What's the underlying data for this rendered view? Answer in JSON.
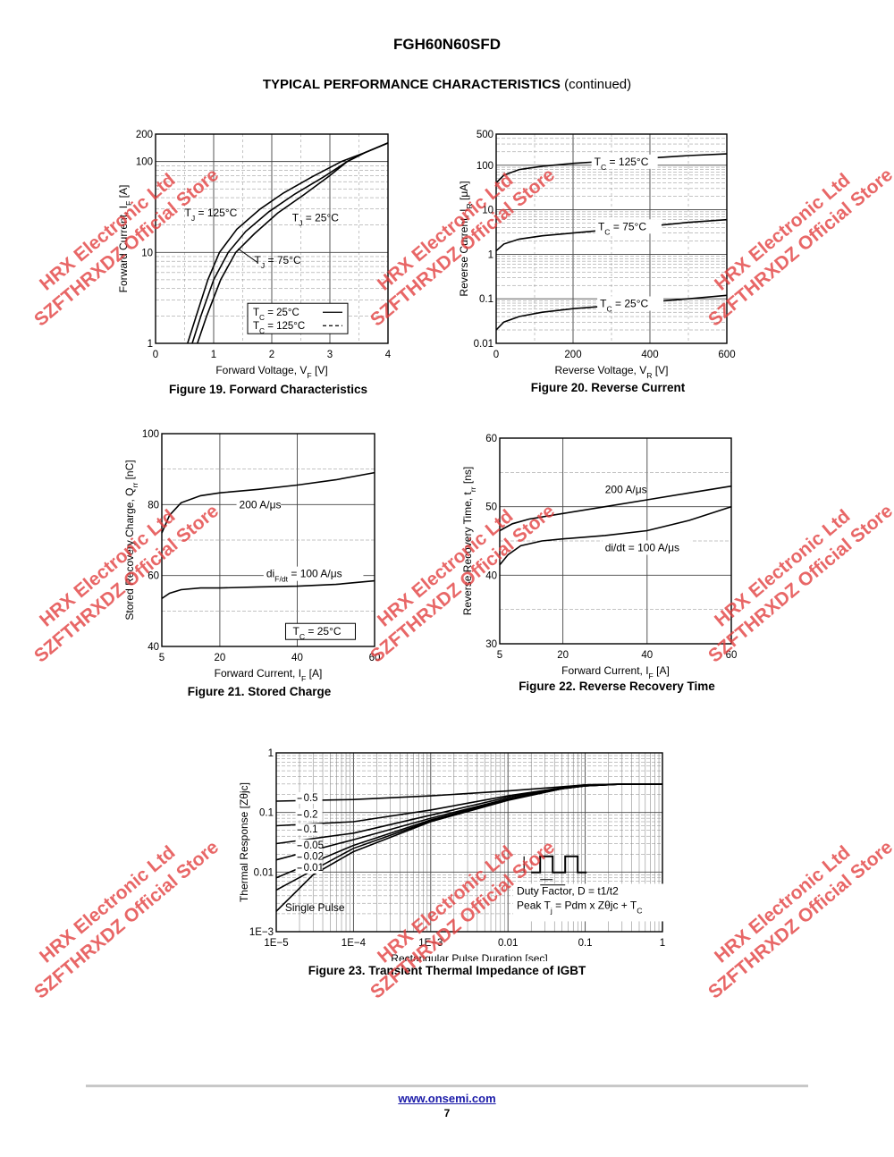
{
  "header": {
    "part_number": "FGH60N60SFD",
    "section_title": "TYPICAL PERFORMANCE CHARACTERISTICS",
    "section_suffix": "(continued)"
  },
  "footer": {
    "url": "www.onsemi.com",
    "page": "7"
  },
  "watermark": {
    "line1": "HRX Electronic Ltd",
    "line2": "SZFTHRXDZ Official Store",
    "color": "#e03c3c"
  },
  "chart_data": [
    {
      "id": "fig19",
      "type": "line",
      "title": "Figure 19. Forward Characteristics",
      "xlabel": "Forward Voltage, V_F [V]",
      "ylabel": "Forward Current, I_F [A]",
      "xscale": "linear",
      "yscale": "log",
      "xlim": [
        0,
        4
      ],
      "ylim": [
        1,
        200
      ],
      "xticks": [
        "0",
        "1",
        "2",
        "3",
        "4"
      ],
      "yticks": [
        {
          "v": 1,
          "t": "1"
        },
        {
          "v": 10,
          "t": "10"
        },
        {
          "v": 100,
          "t": "100"
        },
        {
          "v": 200,
          "t": "200"
        }
      ],
      "grid": true,
      "series": [
        {
          "name": "T_J = 125°C",
          "style": "solid",
          "points": [
            [
              0.55,
              1
            ],
            [
              0.7,
              2
            ],
            [
              0.9,
              5
            ],
            [
              1.1,
              10
            ],
            [
              1.4,
              18
            ],
            [
              1.8,
              30
            ],
            [
              2.2,
              45
            ],
            [
              2.7,
              68
            ],
            [
              3.2,
              100
            ],
            [
              3.6,
              125
            ],
            [
              4.0,
              160
            ]
          ]
        },
        {
          "name": "T_J = 75°C",
          "style": "solid",
          "points": [
            [
              0.63,
              1
            ],
            [
              0.78,
              2
            ],
            [
              1.0,
              5
            ],
            [
              1.25,
              10
            ],
            [
              1.55,
              17
            ],
            [
              1.95,
              28
            ],
            [
              2.4,
              44
            ],
            [
              2.9,
              68
            ],
            [
              3.3,
              100
            ],
            [
              3.6,
              125
            ],
            [
              4.0,
              160
            ]
          ]
        },
        {
          "name": "T_J = 25°C",
          "style": "solid",
          "points": [
            [
              0.72,
              1
            ],
            [
              0.88,
              2
            ],
            [
              1.12,
              5
            ],
            [
              1.38,
              10
            ],
            [
              1.7,
              16
            ],
            [
              2.1,
              27
            ],
            [
              2.55,
              43
            ],
            [
              3.0,
              70
            ],
            [
              3.3,
              100
            ],
            [
              3.6,
              125
            ],
            [
              4.0,
              160
            ]
          ]
        }
      ],
      "labels": [
        {
          "text": "T_J = 125°C",
          "x": 0.5,
          "y": 25
        },
        {
          "text": "T_J = 25°C",
          "x": 2.35,
          "y": 22
        },
        {
          "text": "T_J = 75°C",
          "x": 1.7,
          "y": 7.5
        }
      ],
      "legend": {
        "entries": [
          {
            "text": "T_C = 25°C",
            "style": "solid"
          },
          {
            "text": "T_C = 125°C",
            "style": "dashed"
          }
        ],
        "position": "bottom-right"
      }
    },
    {
      "id": "fig20",
      "type": "line",
      "title": "Figure 20. Reverse Current",
      "xlabel": "Reverse Voltage, V_R [V]",
      "ylabel": "Reverse Current, I_R [μA]",
      "xscale": "linear",
      "yscale": "log",
      "xlim": [
        0,
        600
      ],
      "ylim": [
        0.01,
        500
      ],
      "xticks": [
        "0",
        "200",
        "400",
        "600"
      ],
      "yticks": [
        {
          "v": 0.01,
          "t": "0.01"
        },
        {
          "v": 0.1,
          "t": "0.1"
        },
        {
          "v": 1,
          "t": "1"
        },
        {
          "v": 10,
          "t": "10"
        },
        {
          "v": 100,
          "t": "100"
        },
        {
          "v": 500,
          "t": "500"
        }
      ],
      "grid": true,
      "series": [
        {
          "name": "T_C = 125°C",
          "style": "solid",
          "points": [
            [
              0,
              40
            ],
            [
              20,
              60
            ],
            [
              60,
              80
            ],
            [
              120,
              95
            ],
            [
              200,
              110
            ],
            [
              300,
              125
            ],
            [
              400,
              145
            ],
            [
              500,
              165
            ],
            [
              600,
              180
            ]
          ]
        },
        {
          "name": "T_C = 75°C",
          "style": "solid",
          "points": [
            [
              0,
              1.2
            ],
            [
              20,
              1.7
            ],
            [
              60,
              2.2
            ],
            [
              120,
              2.6
            ],
            [
              200,
              3
            ],
            [
              300,
              3.6
            ],
            [
              400,
              4.3
            ],
            [
              500,
              5.2
            ],
            [
              600,
              6
            ]
          ]
        },
        {
          "name": "T_C = 25°C",
          "style": "solid",
          "points": [
            [
              0,
              0.02
            ],
            [
              20,
              0.03
            ],
            [
              60,
              0.04
            ],
            [
              120,
              0.05
            ],
            [
              200,
              0.06
            ],
            [
              300,
              0.07
            ],
            [
              400,
              0.085
            ],
            [
              500,
              0.1
            ],
            [
              600,
              0.12
            ]
          ]
        }
      ],
      "labels": [
        {
          "text": "T_C = 125°C",
          "x": 255,
          "y": 100
        },
        {
          "text": "T_C = 75°C",
          "x": 265,
          "y": 3.5
        },
        {
          "text": "T_C = 25°C",
          "x": 270,
          "y": 0.065
        }
      ]
    },
    {
      "id": "fig21",
      "type": "line",
      "title": "Figure 21. Stored Charge",
      "xlabel": "Forward Current, I_F [A]",
      "ylabel": "Stored Recovery Charge, Q_rr [nC]",
      "xscale": "linear",
      "yscale": "linear",
      "xlim": [
        5,
        60
      ],
      "ylim": [
        40,
        100
      ],
      "xticks": [
        "5",
        "20",
        "40",
        "60"
      ],
      "xtick_values": [
        5,
        20,
        40,
        60
      ],
      "yticks": [
        {
          "v": 40,
          "t": "40"
        },
        {
          "v": 60,
          "t": "60"
        },
        {
          "v": 80,
          "t": "80"
        },
        {
          "v": 100,
          "t": "100"
        }
      ],
      "grid": true,
      "series": [
        {
          "name": "200 A/μs",
          "style": "solid",
          "points": [
            [
              5,
              72
            ],
            [
              7,
              77
            ],
            [
              10,
              80.5
            ],
            [
              15,
              82.5
            ],
            [
              20,
              83.3
            ],
            [
              30,
              84.3
            ],
            [
              40,
              85.5
            ],
            [
              50,
              87
            ],
            [
              60,
              89
            ]
          ]
        },
        {
          "name": "di_F/dt = 100 A/μs",
          "style": "solid",
          "points": [
            [
              5,
              53.5
            ],
            [
              7,
              55
            ],
            [
              10,
              56
            ],
            [
              15,
              56.5
            ],
            [
              20,
              56.5
            ],
            [
              30,
              56.8
            ],
            [
              40,
              57
            ],
            [
              50,
              57.5
            ],
            [
              60,
              58.5
            ]
          ]
        }
      ],
      "labels": [
        {
          "text": "200 A/μs",
          "x": 25,
          "y": 79
        },
        {
          "text": "di_F/dt = 100 A/μs",
          "x": 32,
          "y": 59.5
        }
      ],
      "legend": {
        "entries": [
          {
            "text": "T_C = 25°C",
            "style": "box"
          }
        ],
        "position": "bottom-right"
      }
    },
    {
      "id": "fig22",
      "type": "line",
      "title": "Figure 22. Reverse Recovery Time",
      "xlabel": "Forward Current, I_F [A]",
      "ylabel": "Reverse Recovery Time, t_rr [ns]",
      "xscale": "linear",
      "yscale": "linear",
      "xlim": [
        5,
        60
      ],
      "ylim": [
        30,
        60
      ],
      "xticks": [
        "5",
        "20",
        "40",
        "60"
      ],
      "xtick_values": [
        5,
        20,
        40,
        60
      ],
      "yticks": [
        {
          "v": 30,
          "t": "30"
        },
        {
          "v": 40,
          "t": "40"
        },
        {
          "v": 50,
          "t": "50"
        },
        {
          "v": 60,
          "t": "60"
        }
      ],
      "grid": true,
      "series": [
        {
          "name": "200 A/μs",
          "style": "solid",
          "points": [
            [
              5,
              46.5
            ],
            [
              8,
              47.5
            ],
            [
              12,
              48.2
            ],
            [
              20,
              49
            ],
            [
              30,
              50
            ],
            [
              40,
              51
            ],
            [
              50,
              52
            ],
            [
              60,
              53
            ]
          ]
        },
        {
          "name": "di/dt = 100 A/μs",
          "style": "solid",
          "points": [
            [
              5,
              41.5
            ],
            [
              7,
              43
            ],
            [
              10,
              44.3
            ],
            [
              15,
              45
            ],
            [
              20,
              45.3
            ],
            [
              30,
              45.8
            ],
            [
              40,
              46.5
            ],
            [
              50,
              48
            ],
            [
              60,
              50
            ]
          ]
        }
      ],
      "labels": [
        {
          "text": "200 A/μs",
          "x": 30,
          "y": 52
        },
        {
          "text": "di/dt = 100 A/μs",
          "x": 30,
          "y": 43.5
        }
      ]
    },
    {
      "id": "fig23",
      "type": "line",
      "title": "Figure 23. Transient Thermal Impedance of IGBT",
      "xlabel": "Rectangular Pulse Duration [sec]",
      "ylabel": "Thermal Response [Zθjc]",
      "xscale": "log",
      "yscale": "log",
      "xlim": [
        1e-05,
        1
      ],
      "ylim": [
        0.001,
        1
      ],
      "xticks": [
        "1E−5",
        "1E−4",
        "1E−3",
        "0.01",
        "0.1",
        "1"
      ],
      "yticks": [
        {
          "v": 0.001,
          "t": "1E−3"
        },
        {
          "v": 0.01,
          "t": "0.01"
        },
        {
          "v": 0.1,
          "t": "0.1"
        },
        {
          "v": 1,
          "t": "1"
        }
      ],
      "grid": true,
      "series": [
        {
          "name": "0.5",
          "style": "solid",
          "points": [
            [
              1e-05,
              0.155
            ],
            [
              0.0001,
              0.165
            ],
            [
              0.001,
              0.19
            ],
            [
              0.01,
              0.23
            ],
            [
              0.05,
              0.27
            ],
            [
              0.1,
              0.29
            ],
            [
              0.3,
              0.3
            ],
            [
              1,
              0.3
            ]
          ]
        },
        {
          "name": "0.2",
          "style": "solid",
          "points": [
            [
              1e-05,
              0.06
            ],
            [
              0.0001,
              0.07
            ],
            [
              0.001,
              0.11
            ],
            [
              0.01,
              0.19
            ],
            [
              0.05,
              0.26
            ],
            [
              0.1,
              0.29
            ],
            [
              0.3,
              0.3
            ],
            [
              1,
              0.3
            ]
          ]
        },
        {
          "name": "0.1",
          "style": "solid",
          "points": [
            [
              1e-05,
              0.03
            ],
            [
              0.0001,
              0.045
            ],
            [
              0.001,
              0.09
            ],
            [
              0.01,
              0.18
            ],
            [
              0.05,
              0.255
            ],
            [
              0.1,
              0.285
            ],
            [
              0.3,
              0.3
            ],
            [
              1,
              0.3
            ]
          ]
        },
        {
          "name": "0.05",
          "style": "solid",
          "points": [
            [
              1e-05,
              0.016
            ],
            [
              0.0001,
              0.035
            ],
            [
              0.001,
              0.08
            ],
            [
              0.01,
              0.17
            ],
            [
              0.05,
              0.25
            ],
            [
              0.1,
              0.28
            ],
            [
              0.3,
              0.3
            ],
            [
              1,
              0.3
            ]
          ]
        },
        {
          "name": "0.02",
          "style": "solid",
          "points": [
            [
              1e-05,
              0.008
            ],
            [
              0.0001,
              0.028
            ],
            [
              0.001,
              0.075
            ],
            [
              0.01,
              0.165
            ],
            [
              0.05,
              0.25
            ],
            [
              0.1,
              0.28
            ],
            [
              0.3,
              0.3
            ],
            [
              1,
              0.3
            ]
          ]
        },
        {
          "name": "0.01",
          "style": "solid",
          "points": [
            [
              1e-05,
              0.005
            ],
            [
              0.0001,
              0.025
            ],
            [
              0.001,
              0.072
            ],
            [
              0.01,
              0.163
            ],
            [
              0.05,
              0.25
            ],
            [
              0.1,
              0.28
            ],
            [
              0.3,
              0.3
            ],
            [
              1,
              0.3
            ]
          ]
        },
        {
          "name": "Single Pulse",
          "style": "solid",
          "points": [
            [
              1e-05,
              0.0022
            ],
            [
              3e-05,
              0.009
            ],
            [
              0.0001,
              0.022
            ],
            [
              0.001,
              0.07
            ],
            [
              0.01,
              0.16
            ],
            [
              0.05,
              0.25
            ],
            [
              0.1,
              0.28
            ],
            [
              0.3,
              0.3
            ],
            [
              1,
              0.3
            ]
          ]
        }
      ],
      "curve_labels": [
        {
          "text": "0.5",
          "y": 0.155
        },
        {
          "text": "0.2",
          "y": 0.082
        },
        {
          "text": "0.1",
          "y": 0.046
        },
        {
          "text": "0.05",
          "y": 0.025
        },
        {
          "text": "0.02",
          "y": 0.016
        },
        {
          "text": "0.01",
          "y": 0.0105
        }
      ],
      "single_pulse_label": "Single Pulse",
      "annotation": {
        "line1": "Duty Factor, D = t1/t2",
        "line2": "Peak T_j = Pdm x Zθjc + T_C"
      }
    }
  ]
}
